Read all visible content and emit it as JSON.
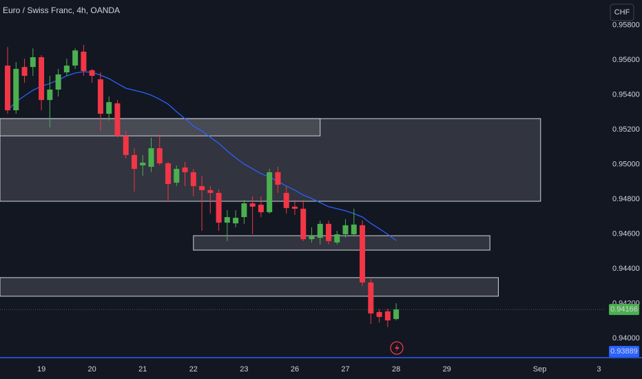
{
  "chart_data": {
    "type": "candlestick",
    "title": "Euro / Swiss Franc, 4h, OANDA",
    "currency": "CHF",
    "x": [
      0,
      1,
      2,
      3,
      4,
      5,
      6,
      7,
      8,
      9,
      10,
      11,
      12,
      13,
      14,
      15,
      16,
      17,
      18,
      19,
      20,
      21,
      22,
      23,
      24,
      25,
      26,
      27,
      28,
      29,
      30,
      31,
      32,
      33,
      34,
      35,
      36,
      37,
      38,
      39,
      40,
      41,
      42,
      43,
      44,
      45,
      46
    ],
    "open": [
      0.95568,
      0.95311,
      0.9556,
      0.9556,
      0.95616,
      0.9537,
      0.9543,
      0.95529,
      0.95568,
      0.95648,
      0.95541,
      0.95489,
      0.95291,
      0.95351,
      0.95164,
      0.95054,
      0.94994,
      0.94986,
      0.95093,
      0.95006,
      0.94895,
      0.94982,
      0.94955,
      0.94875,
      0.94852,
      0.94836,
      0.94665,
      0.94661,
      0.94697,
      0.94776,
      0.94768,
      0.94725,
      0.94955,
      0.94836,
      0.94757,
      0.94745,
      0.9457,
      0.94578,
      0.94658,
      0.94551,
      0.94598,
      0.94598,
      0.9465,
      0.94321,
      0.94151,
      0.94155,
      0.94111
    ],
    "high": [
      0.95675,
      0.95588,
      0.95608,
      0.95667,
      0.95628,
      0.95509,
      0.95549,
      0.95608,
      0.95667,
      0.95687,
      0.95549,
      0.95529,
      0.9539,
      0.9537,
      0.95192,
      0.95093,
      0.95054,
      0.95153,
      0.95172,
      0.95014,
      0.94994,
      0.95014,
      0.94974,
      0.94935,
      0.94875,
      0.94856,
      0.94737,
      0.94737,
      0.94796,
      0.94816,
      0.94816,
      0.94974,
      0.94986,
      0.94875,
      0.94796,
      0.94796,
      0.94638,
      0.94677,
      0.94677,
      0.94618,
      0.94685,
      0.94745,
      0.94677,
      0.94341,
      0.94166,
      0.9417,
      0.94202
    ],
    "low": [
      0.95291,
      0.95291,
      0.95469,
      0.95509,
      0.95311,
      0.95212,
      0.9539,
      0.95509,
      0.95549,
      0.95509,
      0.95469,
      0.95192,
      0.95252,
      0.95153,
      0.95034,
      0.94844,
      0.94935,
      0.94955,
      0.94994,
      0.94784,
      0.94875,
      0.94875,
      0.94816,
      0.94618,
      0.94717,
      0.94618,
      0.94559,
      0.94638,
      0.94658,
      0.94598,
      0.94697,
      0.94717,
      0.94836,
      0.94717,
      0.94709,
      0.94559,
      0.94551,
      0.94539,
      0.94539,
      0.94539,
      0.94578,
      0.9459,
      0.94301,
      0.94083,
      0.94091,
      0.94064,
      0.94103
    ],
    "close": [
      0.95311,
      0.95549,
      0.95509,
      0.95616,
      0.9537,
      0.9543,
      0.95517,
      0.95568,
      0.95655,
      0.95537,
      0.95509,
      0.95291,
      0.95358,
      0.95164,
      0.95054,
      0.94974,
      0.9501,
      0.95093,
      0.95006,
      0.94887,
      0.94974,
      0.94955,
      0.94875,
      0.94852,
      0.94836,
      0.94665,
      0.94697,
      0.94693,
      0.94776,
      0.94757,
      0.94725,
      0.94955,
      0.94883,
      0.94749,
      0.94745,
      0.9457,
      0.94586,
      0.94658,
      0.94559,
      0.94598,
      0.9465,
      0.94654,
      0.94321,
      0.94143,
      0.94123,
      0.94103,
      0.94166
    ],
    "up_color": "#4caf50",
    "down_color": "#f23645",
    "moving_average": {
      "color": "#2962ff",
      "values": [
        0.95311,
        0.9536,
        0.95394,
        0.95426,
        0.9545,
        0.95465,
        0.95485,
        0.95509,
        0.95525,
        0.95533,
        0.95529,
        0.95513,
        0.95493,
        0.95465,
        0.95438,
        0.95426,
        0.95414,
        0.95398,
        0.95374,
        0.95347,
        0.95303,
        0.95263,
        0.9522,
        0.95192,
        0.95156,
        0.95121,
        0.95077,
        0.95038,
        0.95002,
        0.94974,
        0.94947,
        0.94927,
        0.94903,
        0.94875,
        0.94852,
        0.94824,
        0.94804,
        0.9478,
        0.94757,
        0.94745,
        0.94733,
        0.94717,
        0.94697,
        0.94661,
        0.9463,
        0.94598,
        0.94562
      ]
    },
    "zones": [
      {
        "x": [
          -0.9,
          63.1
        ],
        "y": [
          0.95263,
          0.94788
        ],
        "fill": "#3d3f49"
      },
      {
        "x": [
          -0.9,
          37.0
        ],
        "y": [
          0.95263,
          0.95164
        ],
        "fill": "#50525c"
      },
      {
        "x": [
          22.0,
          57.1
        ],
        "y": [
          0.9459,
          0.94507
        ],
        "fill": "#3d3f49"
      },
      {
        "x": [
          -0.9,
          58.1
        ],
        "y": [
          0.94349,
          0.94242
        ],
        "fill": "#3d3f49"
      }
    ],
    "last_price": {
      "value": 0.94166,
      "color": "#4caf50"
    },
    "price_line": {
      "value": 0.93889,
      "color": "#2962ff"
    },
    "xlim": [
      -0.9,
      70.7
    ],
    "xticks": [
      {
        "value": 4,
        "label": "19"
      },
      {
        "value": 10,
        "label": "20"
      },
      {
        "value": 16,
        "label": "21"
      },
      {
        "value": 22,
        "label": "22"
      },
      {
        "value": 28,
        "label": "23"
      },
      {
        "value": 34,
        "label": "26"
      },
      {
        "value": 40,
        "label": "27"
      },
      {
        "value": 46,
        "label": "28"
      },
      {
        "value": 52,
        "label": "29"
      },
      {
        "value": 63,
        "label": "Sep"
      },
      {
        "value": 70,
        "label": "3"
      }
    ],
    "ylim": [
      0.93885,
      0.95945
    ],
    "yticks": [
      {
        "value": 0.958,
        "label": "0.95800"
      },
      {
        "value": 0.956,
        "label": "0.95600"
      },
      {
        "value": 0.954,
        "label": "0.95400"
      },
      {
        "value": 0.952,
        "label": "0.95200"
      },
      {
        "value": 0.95,
        "label": "0.95000"
      },
      {
        "value": 0.948,
        "label": "0.94800"
      },
      {
        "value": 0.946,
        "label": "0.94600"
      },
      {
        "value": 0.944,
        "label": "0.94400"
      },
      {
        "value": 0.942,
        "label": "0.94200"
      },
      {
        "value": 0.94,
        "label": "0.94000"
      }
    ],
    "grid": false
  }
}
